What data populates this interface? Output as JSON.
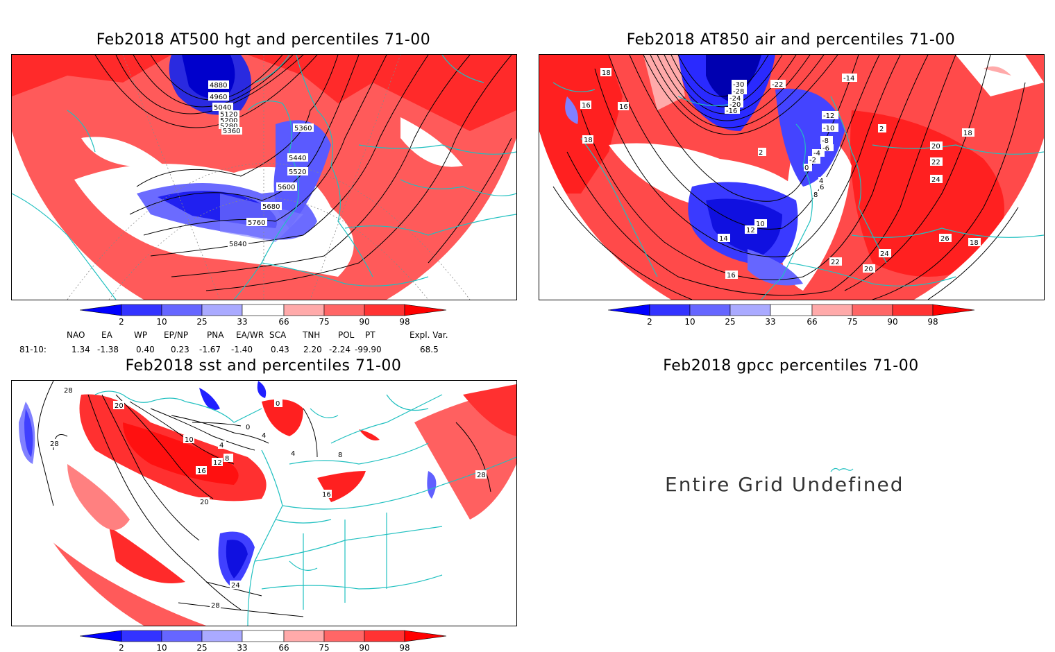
{
  "panels": {
    "hgt": {
      "title": "Feb2018 AT500 hgt and percentiles 71-00",
      "contours": [
        "4880",
        "4960",
        "5040",
        "5120",
        "5200",
        "5280",
        "5360",
        "5360",
        "5440",
        "5520",
        "5600",
        "5680",
        "5760",
        "5840"
      ]
    },
    "air": {
      "title": "Feb2018 AT850 air and percentiles 71-00",
      "contours": [
        "18",
        "16",
        "16",
        "18",
        "-30",
        "-28",
        "-24",
        "-20",
        "-16",
        "-22",
        "-14",
        "-12",
        "-10",
        "-8",
        "-6",
        "-4",
        "-2",
        "0",
        "2",
        "4",
        "6",
        "8",
        "10",
        "12",
        "14",
        "16",
        "18",
        "20",
        "22",
        "24",
        "26",
        "24",
        "22",
        "20",
        "18",
        "2"
      ]
    },
    "sst": {
      "title": "Feb2018 sst and percentiles 71-00",
      "contours": [
        "28",
        "20",
        "28",
        "16",
        "12",
        "8",
        "4",
        "4",
        "0",
        "0",
        "4",
        "8",
        "16",
        "20",
        "24",
        "28",
        "28",
        "10"
      ]
    },
    "gpcc": {
      "title": "Feb2018 gpcc percentiles 71-00",
      "message": "Entire Grid Undefined"
    }
  },
  "colorbar": {
    "labels": [
      "2",
      "10",
      "25",
      "33",
      "66",
      "75",
      "90",
      "98"
    ],
    "colors": [
      "#0000ff",
      "#3333ff",
      "#6666ff",
      "#aaaaff",
      "#ffffff",
      "#ffaaaa",
      "#ff6666",
      "#ff3333",
      "#ff0000"
    ]
  },
  "indices": {
    "header": [
      "NAO",
      "EA",
      "WP",
      "EP/NP",
      "PNA",
      "EA/WR",
      "SCA",
      "TNH",
      "POL",
      "PT",
      "Expl. Var."
    ],
    "row_label": "81-10:",
    "values": [
      "1.34",
      "-1.38",
      "0.40",
      "0.23",
      "-1.67",
      "-1.40",
      "0.43",
      "2.20",
      "-2.24",
      "-99.90",
      "68.5"
    ]
  }
}
